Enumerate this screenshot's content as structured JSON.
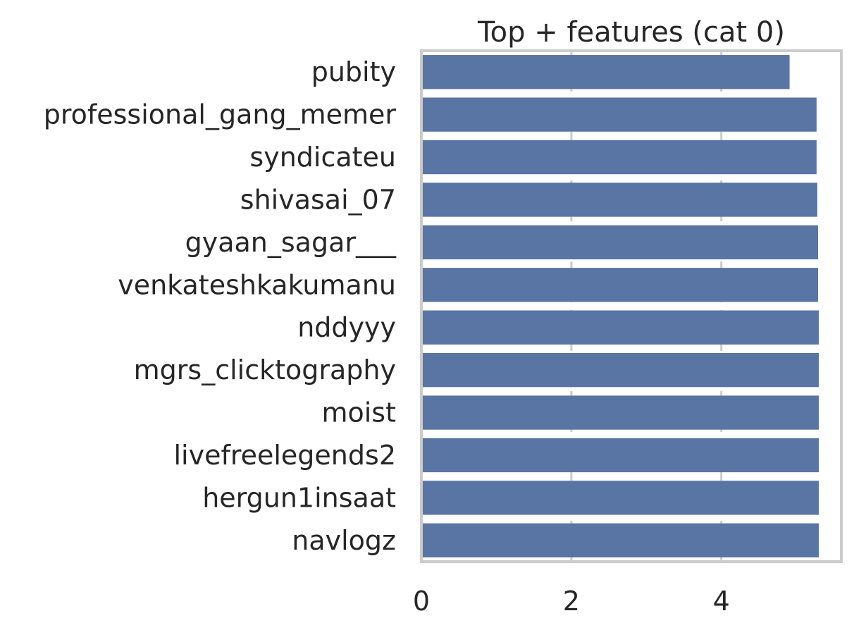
{
  "chart_data": {
    "type": "bar",
    "orientation": "horizontal",
    "title": "Top + features (cat 0)",
    "xlabel": "",
    "ylabel": "",
    "categories": [
      "pubity",
      "professional_gang_memer",
      "syndicateu",
      "shivasai_07",
      "gyaan_sagar___",
      "venkateshkakumanu",
      "nddyyy",
      "mgrs_clicktography",
      "moist",
      "livefreelegends2",
      "hergun1insaat",
      "navlogz"
    ],
    "values": [
      4.91,
      5.27,
      5.27,
      5.28,
      5.29,
      5.29,
      5.3,
      5.3,
      5.3,
      5.3,
      5.3,
      5.3
    ],
    "xlim": [
      0,
      5.6
    ],
    "xticks": [
      "0",
      "2",
      "4"
    ],
    "grid": "vertical dashed",
    "bar_color": "#5975a4",
    "grid_color": "#cccccc",
    "spine_color": "#cccccc",
    "text_color": "#262626"
  }
}
